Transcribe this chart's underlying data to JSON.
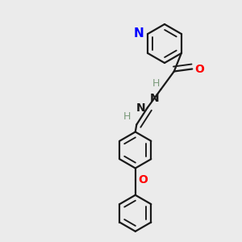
{
  "bg_color": "#ebebeb",
  "bond_color": "#1a1a1a",
  "N_color": "#0000ff",
  "O_color": "#ff0000",
  "H_color": "#7a9a7a",
  "line_width": 1.6,
  "font_size": 9.5,
  "figsize": [
    3.0,
    3.0
  ],
  "dpi": 100,
  "xlim": [
    0,
    10
  ],
  "ylim": [
    0,
    10
  ]
}
